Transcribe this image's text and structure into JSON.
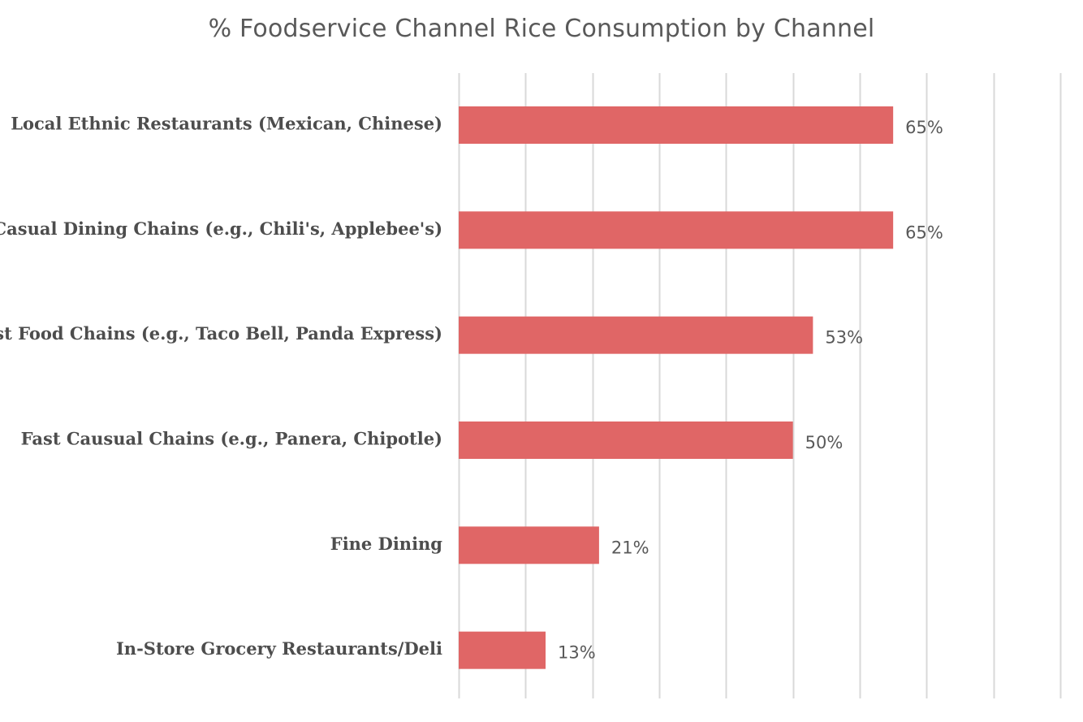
{
  "chart_data": {
    "type": "bar",
    "orientation": "horizontal",
    "title": "% Foodservice Channel Rice Consumption by Channel",
    "categories": [
      "Local Ethnic Restaurants (Mexican, Chinese)",
      "Casual Dining Chains (e.g., Chili's, Applebee's)",
      "Fast Food Chains (e.g., Taco Bell, Panda Express)",
      "Fast Causual Chains (e.g., Panera, Chipotle)",
      "Fine Dining",
      "In-Store Grocery Restaurants/Deli"
    ],
    "values": [
      65,
      65,
      53,
      50,
      21,
      13
    ],
    "value_labels": [
      "65%",
      "65%",
      "53%",
      "50%",
      "21%",
      "13%"
    ],
    "xlim": [
      0,
      90
    ],
    "x_grid_step": 10,
    "grid": true,
    "bar_color": "#e06666",
    "xlabel": "",
    "ylabel": ""
  }
}
